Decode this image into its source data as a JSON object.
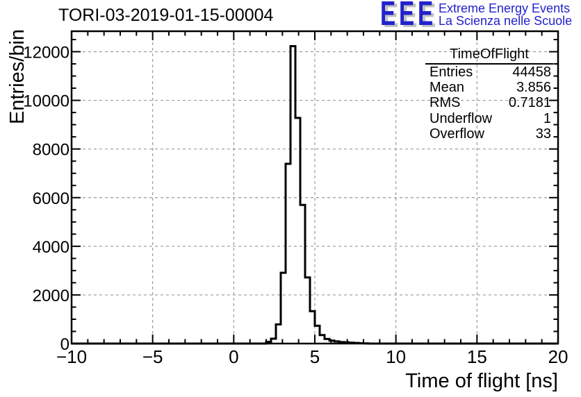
{
  "title": "TORI-03-2019-01-15-00004",
  "logo": {
    "acronym": "EEE",
    "line1": "Extreme Energy Events",
    "line2": "La Scienza nelle Scuole",
    "brand_blue": "#2222cc",
    "shadow_gray": "#c2c2c2"
  },
  "stats": {
    "title": "TimeOfFlight",
    "rows": [
      {
        "label": "Entries",
        "value": "44458"
      },
      {
        "label": "Mean",
        "value": "3.856"
      },
      {
        "label": "RMS",
        "value": "0.7181"
      },
      {
        "label": "Underflow",
        "value": "1"
      },
      {
        "label": "Overflow",
        "value": "33"
      }
    ]
  },
  "chart_data": {
    "type": "bar",
    "subtype": "histogram-step-outline",
    "title": "TORI-03-2019-01-15-00004",
    "xlabel": "Time of flight [ns]",
    "ylabel": "Entries/bin",
    "xlim": [
      -10,
      20
    ],
    "ylim": [
      0,
      12842
    ],
    "n_bins": 100,
    "bin_width": 0.3,
    "bins": {
      "left_edges": [
        2.0,
        2.3,
        2.6,
        2.9,
        3.2,
        3.5,
        3.8,
        4.1,
        4.4,
        4.7,
        5.0,
        5.3,
        5.6,
        5.9,
        6.2,
        6.5,
        6.8,
        7.1,
        7.4,
        7.7,
        8.0
      ],
      "counts": [
        70,
        200,
        790,
        2910,
        7390,
        12230,
        9280,
        5700,
        2720,
        1330,
        730,
        350,
        190,
        120,
        90,
        60,
        50,
        35,
        25,
        15,
        8
      ]
    },
    "x_major_ticks": [
      -10,
      -5,
      0,
      5,
      10,
      15,
      20
    ],
    "x_tick_labels": [
      "−10",
      "−5",
      "0",
      "5",
      "10",
      "15",
      "20"
    ],
    "x_minor_step": 1,
    "y_major_ticks": [
      0,
      2000,
      4000,
      6000,
      8000,
      10000,
      12000
    ],
    "y_tick_labels": [
      "0",
      "2000",
      "4000",
      "6000",
      "8000",
      "10000",
      "12000"
    ],
    "y_minor_step": 500,
    "grid": {
      "show": true,
      "style": "dashed",
      "color": "#999999",
      "at": "major-ticks"
    },
    "line_color": "#000000",
    "frame_color": "#000000",
    "legend_position": "none"
  }
}
